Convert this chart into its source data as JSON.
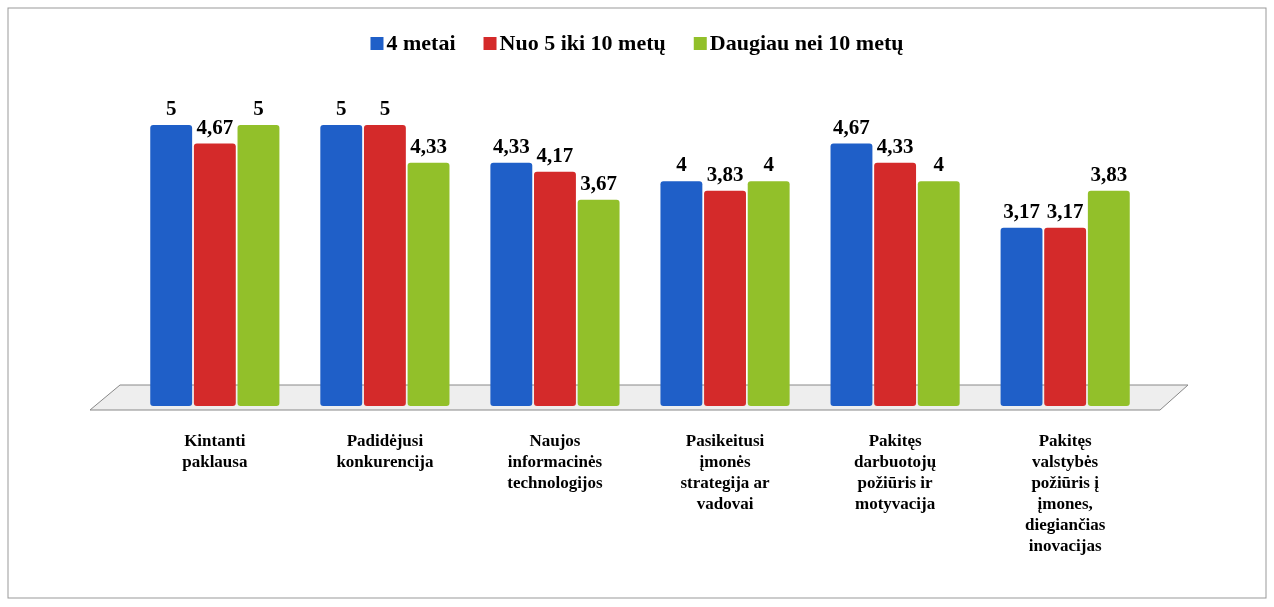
{
  "chart_data": {
    "type": "bar",
    "categories": [
      "Kintanti paklausa",
      "Padidėjusi konkurencija",
      "Naujos informacinės technologijos",
      "Pasikeitusi įmonės strategija ar vadovai",
      "Pakitęs darbuotojų požiūris ir motyvacija",
      "Pakitęs valstybės požiūris į įmones, diegiančias inovacijas"
    ],
    "series": [
      {
        "name": "4 metai",
        "color": "#1f5fc8",
        "values": [
          5,
          5,
          4.33,
          4,
          4.67,
          3.17
        ],
        "value_labels": [
          "5",
          "5",
          "4,33",
          "4",
          "4,67",
          "3,17"
        ]
      },
      {
        "name": "Nuo 5 iki 10 metų",
        "color": "#d42a2a",
        "values": [
          4.67,
          5,
          4.17,
          3.83,
          4.33,
          3.17
        ],
        "value_labels": [
          "4,67",
          "5",
          "4,17",
          "3,83",
          "4,33",
          "3,17"
        ]
      },
      {
        "name": "Daugiau nei 10 metų",
        "color": "#92c02a",
        "values": [
          5,
          4.33,
          3.67,
          4,
          4,
          3.83
        ],
        "value_labels": [
          "5",
          "4,33",
          "3,67",
          "4",
          "4",
          "3,83"
        ]
      }
    ],
    "legend": "top"
  }
}
